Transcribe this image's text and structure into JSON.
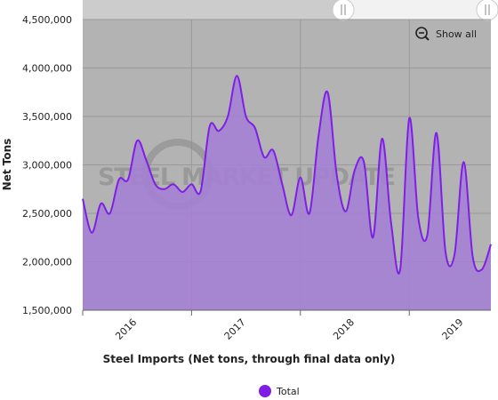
{
  "chart_data": {
    "type": "area",
    "x_title": "Steel Imports (Net tons, through final data only)",
    "y_title": "Net Tons",
    "watermark": "STEEL MARKET UPDATE",
    "zoom_button": "Show all",
    "categories": [
      null,
      null,
      null,
      null,
      null,
      null,
      "2016",
      null,
      null,
      null,
      null,
      null,
      null,
      null,
      null,
      null,
      null,
      null,
      "2017",
      null,
      null,
      null,
      null,
      null,
      null,
      null,
      null,
      null,
      null,
      null,
      "2018",
      null,
      null,
      null,
      null,
      null,
      null,
      null,
      null,
      null,
      null,
      null,
      "2019",
      null,
      null,
      null
    ],
    "series": [
      {
        "name": "Total",
        "color": "#7f1fe6",
        "fill": "#a47fd4",
        "values": [
          2650000,
          2300000,
          2600000,
          2500000,
          2850000,
          2850000,
          3250000,
          3050000,
          2800000,
          2750000,
          2800000,
          2720000,
          2800000,
          2730000,
          3400000,
          3350000,
          3500000,
          3920000,
          3500000,
          3380000,
          3080000,
          3150000,
          2800000,
          2480000,
          2870000,
          2500000,
          3300000,
          3750000,
          2900000,
          2520000,
          2950000,
          3030000,
          2250000,
          3270000,
          2400000,
          1920000,
          3480000,
          2450000,
          2280000,
          3330000,
          2100000,
          2080000,
          3030000,
          2050000,
          1920000,
          2180000
        ]
      }
    ],
    "ylim": [
      1500000,
      4500000
    ],
    "yticks": [
      {
        "value": 1500000,
        "label": "1,500,000"
      },
      {
        "value": 2000000,
        "label": "2,000,000"
      },
      {
        "value": 2500000,
        "label": "2,500,000"
      },
      {
        "value": 3000000,
        "label": "3,000,000"
      },
      {
        "value": 3500000,
        "label": "3,500,000"
      },
      {
        "value": 4000000,
        "label": "4,000,000"
      },
      {
        "value": 4500000,
        "label": "4,500,000"
      }
    ],
    "grid": true,
    "legend": "bottom"
  }
}
